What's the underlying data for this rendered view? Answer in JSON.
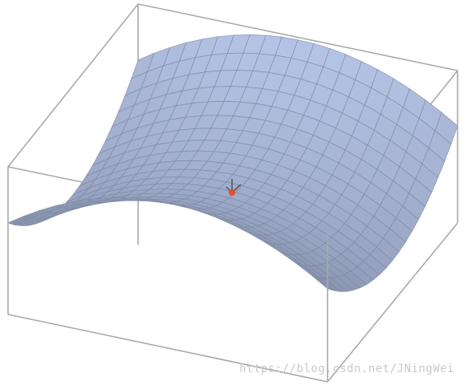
{
  "figure": {
    "surface_type": "saddle",
    "surface_fill_color": "#b9c8eb",
    "surface_grid_color": "#7b8aa6",
    "box_color": "#a9a9a9",
    "critical_point_color": "#e8502a",
    "axis_marker_color": "#555555"
  },
  "watermark": {
    "text": "https://blog.csdn.net/JNingWei"
  }
}
